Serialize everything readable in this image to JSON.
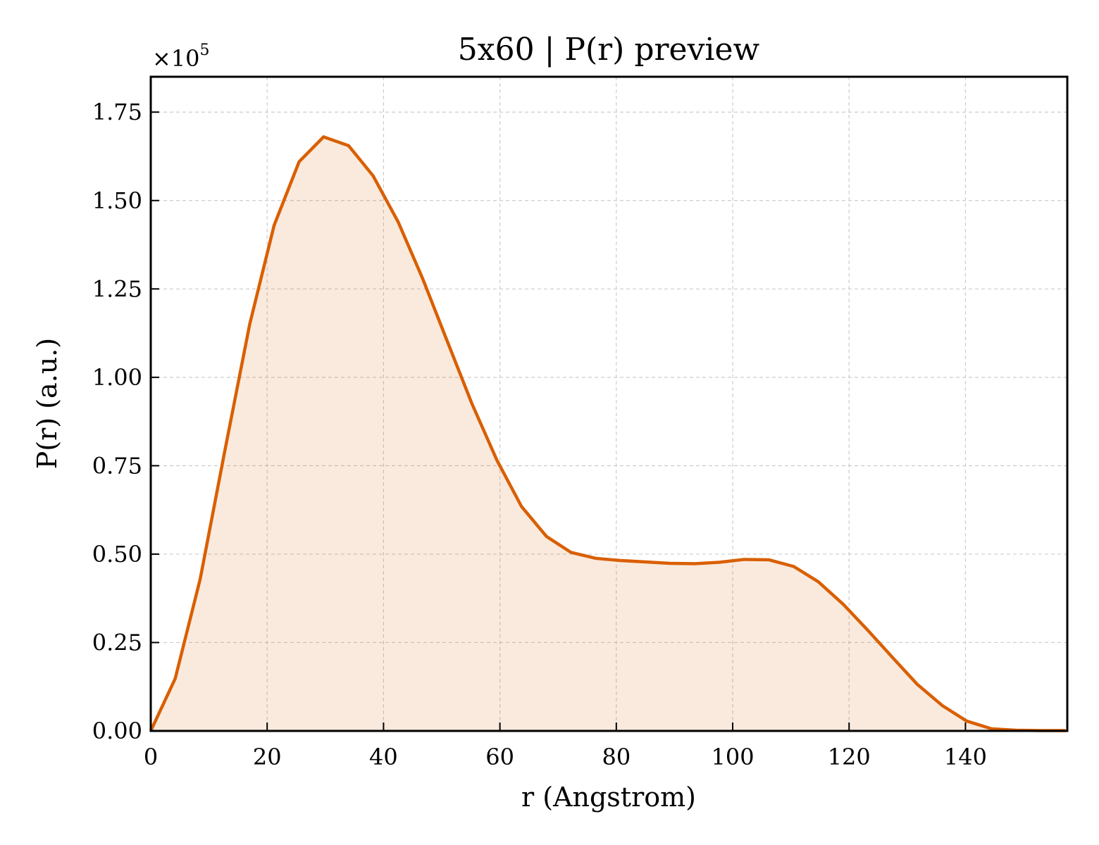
{
  "chart_data": {
    "type": "area",
    "title": "5x60 | P(r) preview",
    "xlabel": "r (Angstrom)",
    "ylabel": "P(r) (a.u.)",
    "y_scale_label": "×10",
    "y_scale_exponent": "5",
    "xlim": [
      0,
      157.5
    ],
    "ylim": [
      0,
      1.85
    ],
    "x_ticks": [
      0,
      20,
      40,
      60,
      80,
      100,
      120,
      140
    ],
    "x_tick_labels": [
      "0",
      "20",
      "40",
      "60",
      "80",
      "100",
      "120",
      "140"
    ],
    "y_ticks": [
      0,
      0.25,
      0.5,
      0.75,
      1.0,
      1.25,
      1.5,
      1.75
    ],
    "y_tick_labels": [
      "0.00",
      "0.25",
      "0.50",
      "0.75",
      "1.00",
      "1.25",
      "1.50",
      "1.75"
    ],
    "grid": true,
    "line_color": "#d95f02",
    "fill_color": "#d95f02",
    "fill_opacity": 0.13,
    "series": [
      {
        "x": [
          0,
          4.2,
          8.5,
          12.7,
          17.0,
          21.2,
          25.5,
          29.7,
          34.0,
          38.2,
          42.5,
          46.7,
          51.0,
          55.2,
          59.5,
          63.7,
          68.0,
          72.2,
          76.5,
          80.7,
          85.0,
          89.2,
          93.5,
          97.7,
          102.0,
          106.2,
          110.5,
          114.7,
          119.0,
          123.2,
          127.5,
          131.7,
          136.0,
          140.2,
          144.5,
          148.7,
          153.0,
          157.2
        ],
        "y": [
          0.0,
          0.148,
          0.43,
          0.79,
          1.15,
          1.43,
          1.61,
          1.68,
          1.655,
          1.57,
          1.44,
          1.28,
          1.1,
          0.925,
          0.765,
          0.635,
          0.55,
          0.505,
          0.488,
          0.482,
          0.478,
          0.474,
          0.473,
          0.477,
          0.485,
          0.484,
          0.465,
          0.422,
          0.358,
          0.285,
          0.207,
          0.132,
          0.072,
          0.028,
          0.006,
          0.002,
          0.001,
          0.001
        ]
      }
    ]
  }
}
